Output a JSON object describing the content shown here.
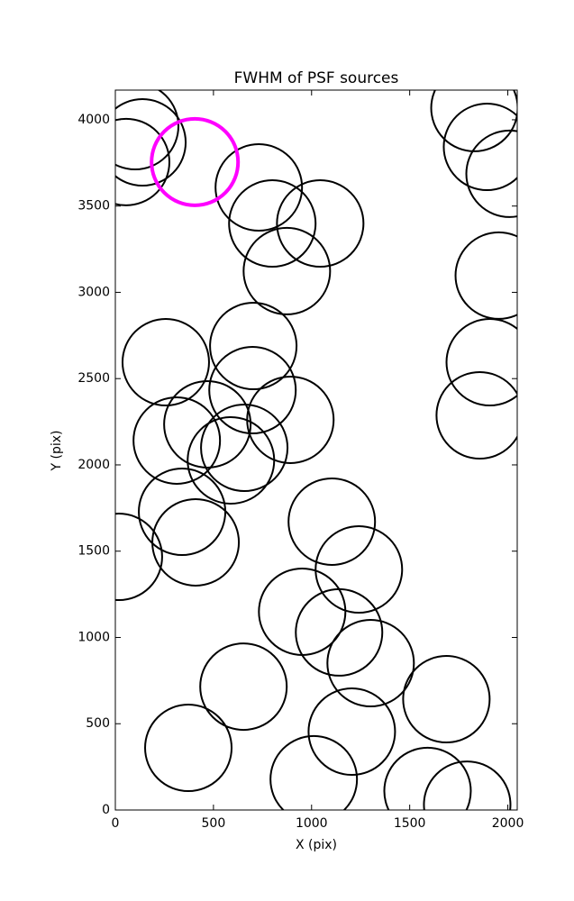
{
  "chart_data": {
    "type": "scatter",
    "title": "FWHM of PSF sources",
    "x_label": "X (pix)",
    "y_label": "Y (pix)",
    "xlim": [
      0,
      2048
    ],
    "ylim": [
      0,
      4172
    ],
    "xticks": [
      0,
      500,
      1000,
      1500,
      2000
    ],
    "yticks": [
      0,
      500,
      1000,
      1500,
      2000,
      2500,
      3000,
      3500,
      4000
    ],
    "series": [
      {
        "color": "#000000",
        "x": [
          101,
          138,
          55,
          731,
          800,
          1044,
          874,
          703,
          257,
          699,
          892,
          469,
          313,
          657,
          589,
          340,
          409,
          18,
          1103,
          1241,
          952,
          1140,
          1301,
          653,
          372,
          1205,
          1011,
          1687,
          1591,
          1793,
          1830,
          1894,
          2009,
          1954,
          1908,
          1857
        ],
        "values": [
          3963,
          3869,
          3755,
          3608,
          3399,
          3399,
          3123,
          2689,
          2595,
          2433,
          2261,
          2235,
          2141,
          2099,
          2026,
          1728,
          1551,
          1467,
          1671,
          1394,
          1149,
          1029,
          851,
          715,
          360,
          454,
          178,
          642,
          110,
          31,
          4068,
          3843,
          3687,
          3097,
          2595,
          2287
        ]
      },
      {
        "color": "#ff00ff",
        "x": [
          405
        ],
        "values": [
          3755
        ]
      }
    ]
  }
}
